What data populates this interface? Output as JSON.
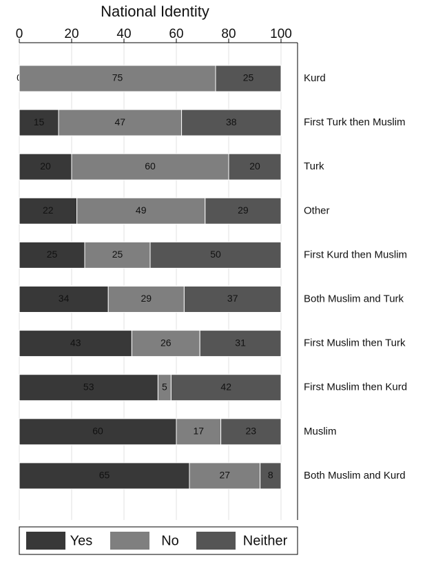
{
  "chart_data": {
    "type": "stacked_barh",
    "title": "National Identity",
    "categories": [
      "Kurd",
      "First Turk then Muslim",
      "Turk",
      "Other",
      "First Kurd then Muslim",
      "Both Muslim and Turk",
      "First Muslim then Turk",
      "First Muslim then Kurd",
      "Muslim",
      "Both Muslim and Kurd"
    ],
    "series": [
      {
        "name": "Yes",
        "color": "#383838",
        "values": [
          0,
          15,
          20,
          22,
          25,
          34,
          43,
          53,
          60,
          65
        ]
      },
      {
        "name": "No",
        "color": "#7f7f7f",
        "values": [
          75,
          47,
          60,
          49,
          25,
          29,
          26,
          5,
          17,
          27
        ]
      },
      {
        "name": "Neither",
        "color": "#555555",
        "values": [
          25,
          38,
          20,
          29,
          50,
          37,
          31,
          42,
          23,
          8
        ]
      }
    ],
    "xlim": [
      0,
      100
    ],
    "xticks": [
      0,
      20,
      40,
      60,
      80,
      100
    ],
    "grid": true,
    "legend": "bottom"
  }
}
